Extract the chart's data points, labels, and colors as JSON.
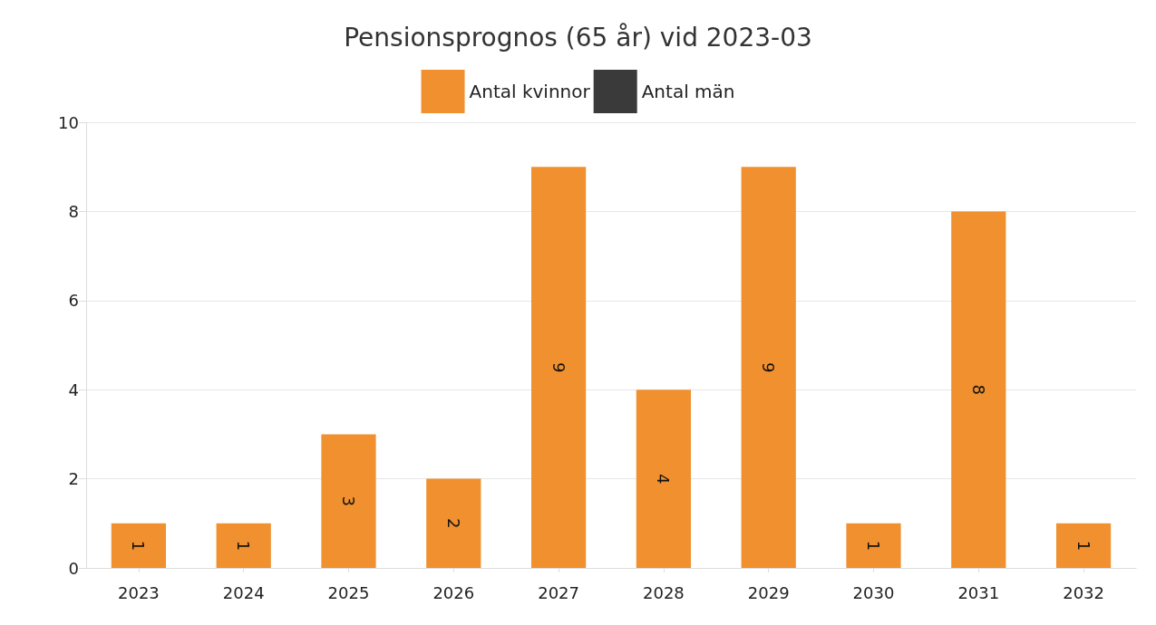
{
  "chart_data": {
    "type": "bar",
    "title": "Pensionsprognos (65 år) vid 2023-03",
    "categories": [
      "2023",
      "2024",
      "2025",
      "2026",
      "2027",
      "2028",
      "2029",
      "2030",
      "2031",
      "2032"
    ],
    "series": [
      {
        "name": "Antal kvinnor",
        "color": "#f0902f",
        "values": [
          1,
          1,
          3,
          2,
          9,
          4,
          9,
          1,
          8,
          1
        ]
      },
      {
        "name": "Antal män",
        "color": "#3a3a3a",
        "values": [
          null,
          null,
          null,
          null,
          null,
          null,
          null,
          null,
          null,
          null
        ]
      }
    ],
    "ylim": [
      0,
      10
    ],
    "yticks": [
      0,
      2,
      4,
      6,
      8,
      10
    ],
    "grid": "y",
    "legend": "top",
    "data_labels": true
  }
}
